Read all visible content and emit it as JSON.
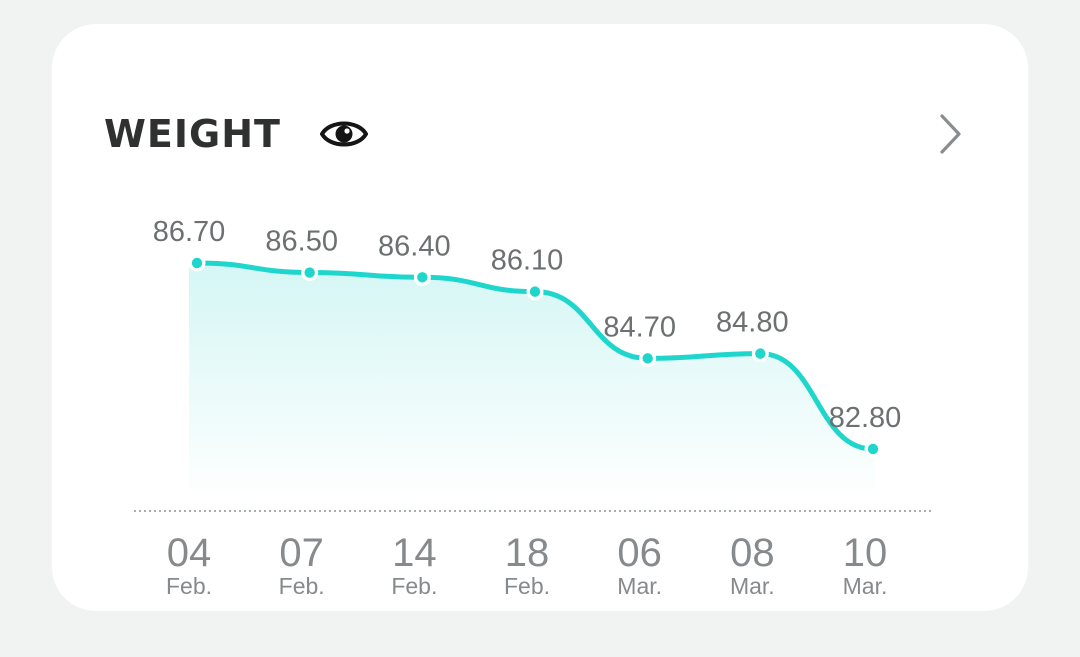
{
  "card": {
    "title": "WEIGHT",
    "icons": {
      "visibility": "eye-icon",
      "navigate": "chevron-right-icon"
    }
  },
  "colors": {
    "line": "#1fd6cc",
    "fill_top": "#d2f6f4",
    "fill_bottom": "#ffffff",
    "title": "#2f3030",
    "label": "#6c7071",
    "axis_text": "#868a8c",
    "card_bg": "#ffffff",
    "page_bg": "#f1f2f2"
  },
  "chart_data": {
    "type": "area",
    "x": [
      "04 Feb.",
      "07 Feb.",
      "14 Feb.",
      "18 Feb.",
      "06 Mar.",
      "08 Mar.",
      "10 Mar."
    ],
    "x_days": [
      "04",
      "07",
      "14",
      "18",
      "06",
      "08",
      "10"
    ],
    "x_months": [
      "Feb.",
      "Feb.",
      "Feb.",
      "Feb.",
      "Mar.",
      "Mar.",
      "Mar."
    ],
    "series": [
      {
        "values": [
          86.7,
          86.5,
          86.4,
          86.1,
          84.7,
          84.8,
          82.8
        ],
        "labels": [
          "86.70",
          "86.50",
          "86.40",
          "86.10",
          "84.70",
          "84.80",
          "82.80"
        ]
      }
    ],
    "title": "",
    "xlabel": "",
    "ylabel": "",
    "grid": false,
    "baseline": "dotted"
  }
}
